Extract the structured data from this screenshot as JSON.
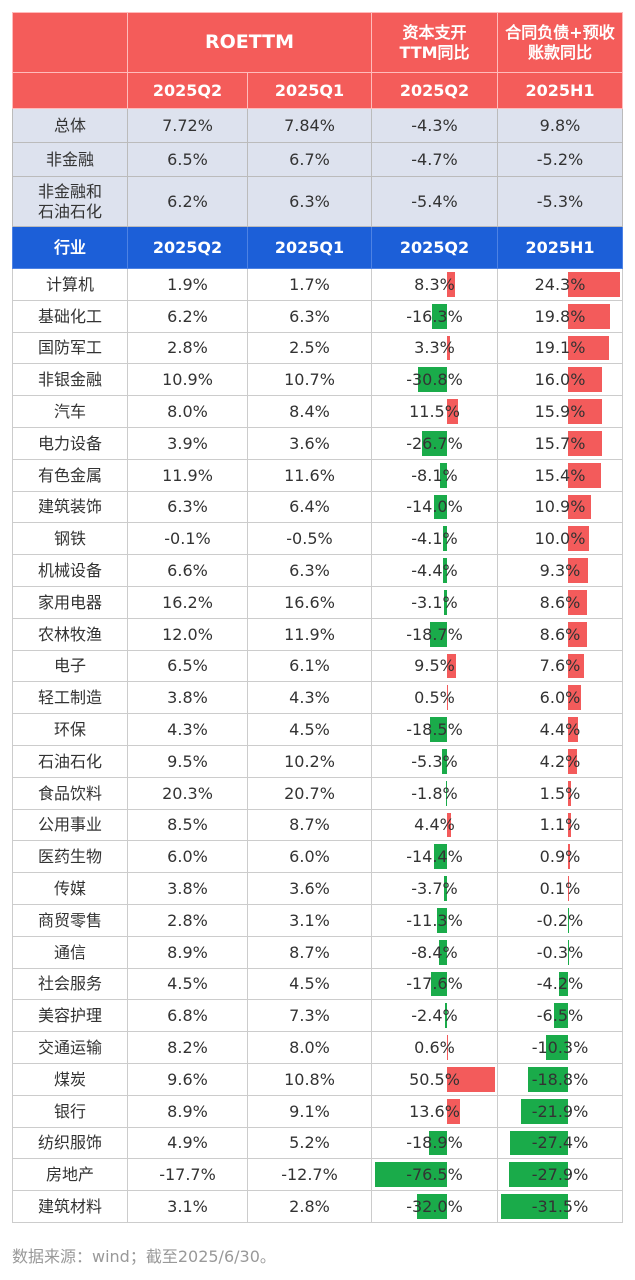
{
  "header": {
    "group": [
      "ROETTM",
      "资本支开\nTTM同比",
      "合同负债+预收\n账款同比"
    ],
    "periods": [
      "2025Q2",
      "2025Q1",
      "2025Q2",
      "2025H1"
    ]
  },
  "summary": [
    [
      "总体",
      "7.72%",
      "7.84%",
      "-4.3%",
      "9.8%"
    ],
    [
      "非金融",
      "6.5%",
      "6.7%",
      "-4.7%",
      "-5.2%"
    ],
    [
      "非金融和\n石油石化",
      "6.2%",
      "6.3%",
      "-5.4%",
      "-5.3%"
    ]
  ],
  "table": {
    "header": [
      "行业",
      "2025Q2",
      "2025Q1",
      "2025Q2",
      "2025H1"
    ],
    "rows": [
      [
        "计算机",
        "1.9%",
        "1.7%",
        "8.3%",
        "24.3%"
      ],
      [
        "基础化工",
        "6.2%",
        "6.3%",
        "-16.3%",
        "19.8%"
      ],
      [
        "国防军工",
        "2.8%",
        "2.5%",
        "3.3%",
        "19.1%"
      ],
      [
        "非银金融",
        "10.9%",
        "10.7%",
        "-30.8%",
        "16.0%"
      ],
      [
        "汽车",
        "8.0%",
        "8.4%",
        "11.5%",
        "15.9%"
      ],
      [
        "电力设备",
        "3.9%",
        "3.6%",
        "-26.7%",
        "15.7%"
      ],
      [
        "有色金属",
        "11.9%",
        "11.6%",
        "-8.1%",
        "15.4%"
      ],
      [
        "建筑装饰",
        "6.3%",
        "6.4%",
        "-14.0%",
        "10.9%"
      ],
      [
        "钢铁",
        "-0.1%",
        "-0.5%",
        "-4.1%",
        "10.0%"
      ],
      [
        "机械设备",
        "6.6%",
        "6.3%",
        "-4.4%",
        "9.3%"
      ],
      [
        "家用电器",
        "16.2%",
        "16.6%",
        "-3.1%",
        "8.6%"
      ],
      [
        "农林牧渔",
        "12.0%",
        "11.9%",
        "-18.7%",
        "8.6%"
      ],
      [
        "电子",
        "6.5%",
        "6.1%",
        "9.5%",
        "7.6%"
      ],
      [
        "轻工制造",
        "3.8%",
        "4.3%",
        "0.5%",
        "6.0%"
      ],
      [
        "环保",
        "4.3%",
        "4.5%",
        "-18.5%",
        "4.4%"
      ],
      [
        "石油石化",
        "9.5%",
        "10.2%",
        "-5.3%",
        "4.2%"
      ],
      [
        "食品饮料",
        "20.3%",
        "20.7%",
        "-1.8%",
        "1.5%"
      ],
      [
        "公用事业",
        "8.5%",
        "8.7%",
        "4.4%",
        "1.1%"
      ],
      [
        "医药生物",
        "6.0%",
        "6.0%",
        "-14.4%",
        "0.9%"
      ],
      [
        "传媒",
        "3.8%",
        "3.6%",
        "-3.7%",
        "0.1%"
      ],
      [
        "商贸零售",
        "2.8%",
        "3.1%",
        "-11.3%",
        "-0.2%"
      ],
      [
        "通信",
        "8.9%",
        "8.7%",
        "-8.4%",
        "-0.3%"
      ],
      [
        "社会服务",
        "4.5%",
        "4.5%",
        "-17.6%",
        "-4.2%"
      ],
      [
        "美容护理",
        "6.8%",
        "7.3%",
        "-2.4%",
        "-6.5%"
      ],
      [
        "交通运输",
        "8.2%",
        "8.0%",
        "0.6%",
        "-10.3%"
      ],
      [
        "煤炭",
        "9.6%",
        "10.8%",
        "50.5%",
        "-18.8%"
      ],
      [
        "银行",
        "8.9%",
        "9.1%",
        "13.6%",
        "-21.9%"
      ],
      [
        "纺织服饰",
        "4.9%",
        "5.2%",
        "-18.9%",
        "-27.4%"
      ],
      [
        "房地产",
        "-17.7%",
        "-12.7%",
        "-76.5%",
        "-27.9%"
      ],
      [
        "建筑材料",
        "3.1%",
        "2.8%",
        "-32.0%",
        "-31.5%"
      ]
    ]
  },
  "footer": "数据来源：wind；截至2025/6/30。"
}
